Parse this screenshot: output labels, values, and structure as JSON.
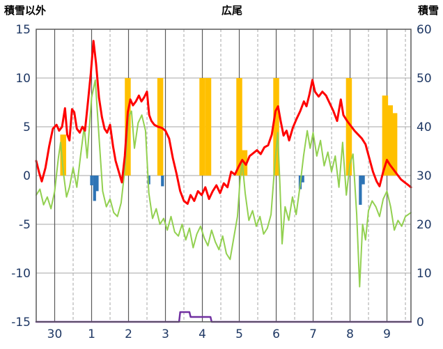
{
  "header": {
    "left_axis_label": "積雪以外",
    "title": "広尾",
    "right_axis_label": "積雪"
  },
  "palette": {
    "temperature": "#FF0000",
    "secondary": "#92D050",
    "sunshine": "#FFC000",
    "precipitation": "#2E74B5",
    "snow": "#7030A0",
    "grid": "#A6A6A6",
    "day_grid": "#595959",
    "axis_text": "#1F3864",
    "border": "#595959"
  },
  "chart_data": {
    "type": "mixed",
    "title": "広尾",
    "left_axis": {
      "label": "積雪以外",
      "min": -15,
      "max": 15,
      "tick_step": 5
    },
    "right_axis": {
      "label": "積雪",
      "min": 0,
      "max": 60,
      "tick_step": 10
    },
    "x_domain": [
      0,
      10.15
    ],
    "x_ticks": [
      {
        "t": 0.5,
        "label": "30"
      },
      {
        "t": 1.5,
        "label": "1"
      },
      {
        "t": 2.5,
        "label": "2"
      },
      {
        "t": 3.5,
        "label": "3"
      },
      {
        "t": 4.5,
        "label": "4"
      },
      {
        "t": 5.5,
        "label": "5"
      },
      {
        "t": 6.5,
        "label": "6"
      },
      {
        "t": 7.5,
        "label": "7"
      },
      {
        "t": 8.5,
        "label": "8"
      },
      {
        "t": 9.5,
        "label": "9"
      }
    ],
    "series": [
      {
        "name": "sunshine-bars",
        "type": "bar",
        "axis": "left",
        "color": "#FFC000",
        "bar_width": 0.16,
        "points": [
          [
            0.73,
            4.2
          ],
          [
            2.48,
            10
          ],
          [
            3.36,
            10
          ],
          [
            4.5,
            10
          ],
          [
            4.66,
            10
          ],
          [
            5.5,
            10
          ],
          [
            5.64,
            2.6
          ],
          [
            6.5,
            10
          ],
          [
            8.47,
            10
          ],
          [
            9.45,
            8.2
          ],
          [
            9.58,
            7.2
          ],
          [
            9.7,
            6.4
          ]
        ]
      },
      {
        "name": "precipitation-bars",
        "type": "bar",
        "axis": "left",
        "color": "#2E74B5",
        "bar_width": 0.08,
        "points": [
          [
            1.5,
            -1.0
          ],
          [
            1.58,
            -2.6
          ],
          [
            1.65,
            -1.6
          ],
          [
            3.05,
            -0.9
          ],
          [
            3.42,
            -1.1
          ],
          [
            7.15,
            -1.4
          ],
          [
            7.22,
            -0.7
          ],
          [
            8.78,
            -3.0
          ],
          [
            8.86,
            -0.9
          ]
        ]
      },
      {
        "name": "snow-depth-line",
        "type": "line",
        "axis": "right",
        "color": "#7030A0",
        "stroke_width": 2.5,
        "points": [
          [
            0,
            0
          ],
          [
            3.87,
            0
          ],
          [
            3.9,
            2
          ],
          [
            4.15,
            2
          ],
          [
            4.18,
            1
          ],
          [
            4.72,
            1
          ],
          [
            4.75,
            0
          ],
          [
            10.15,
            0
          ]
        ]
      },
      {
        "name": "secondary-line",
        "type": "line",
        "axis": "left",
        "color": "#92D050",
        "stroke_width": 2,
        "points": [
          [
            0,
            -2
          ],
          [
            0.1,
            -1.4
          ],
          [
            0.2,
            -3
          ],
          [
            0.3,
            -2.2
          ],
          [
            0.4,
            -3.4
          ],
          [
            0.5,
            -1.6
          ],
          [
            0.6,
            1.8
          ],
          [
            0.66,
            3.4
          ],
          [
            0.74,
            0.2
          ],
          [
            0.82,
            -2.2
          ],
          [
            0.9,
            -1.2
          ],
          [
            1,
            0.8
          ],
          [
            1.1,
            -1.2
          ],
          [
            1.2,
            2
          ],
          [
            1.3,
            5
          ],
          [
            1.38,
            1.8
          ],
          [
            1.5,
            8
          ],
          [
            1.6,
            9.8
          ],
          [
            1.7,
            4
          ],
          [
            1.8,
            -1.6
          ],
          [
            1.9,
            -3.2
          ],
          [
            2,
            -2.4
          ],
          [
            2.1,
            -3.8
          ],
          [
            2.2,
            -4.2
          ],
          [
            2.3,
            -2.8
          ],
          [
            2.4,
            0.6
          ],
          [
            2.5,
            6
          ],
          [
            2.58,
            6.6
          ],
          [
            2.66,
            2.8
          ],
          [
            2.76,
            5.4
          ],
          [
            2.86,
            6.2
          ],
          [
            2.96,
            4.6
          ],
          [
            3.05,
            -1.8
          ],
          [
            3.15,
            -4.4
          ],
          [
            3.25,
            -3.4
          ],
          [
            3.35,
            -5
          ],
          [
            3.45,
            -4.4
          ],
          [
            3.55,
            -5.6
          ],
          [
            3.65,
            -4.2
          ],
          [
            3.75,
            -5.8
          ],
          [
            3.85,
            -6.2
          ],
          [
            3.95,
            -5
          ],
          [
            4.05,
            -6.6
          ],
          [
            4.15,
            -5.4
          ],
          [
            4.25,
            -7.4
          ],
          [
            4.35,
            -6
          ],
          [
            4.45,
            -5.2
          ],
          [
            4.55,
            -6.4
          ],
          [
            4.65,
            -7.2
          ],
          [
            4.75,
            -5.6
          ],
          [
            4.85,
            -6.8
          ],
          [
            4.95,
            -7.6
          ],
          [
            5.05,
            -6.2
          ],
          [
            5.15,
            -8
          ],
          [
            5.25,
            -8.6
          ],
          [
            5.35,
            -6.4
          ],
          [
            5.45,
            -4.2
          ],
          [
            5.52,
            -0.5
          ],
          [
            5.58,
            1.4
          ],
          [
            5.66,
            -1.8
          ],
          [
            5.76,
            -4.6
          ],
          [
            5.86,
            -3.6
          ],
          [
            5.96,
            -5.2
          ],
          [
            6.06,
            -4.2
          ],
          [
            6.16,
            -6
          ],
          [
            6.26,
            -5.4
          ],
          [
            6.36,
            -4
          ],
          [
            6.46,
            1
          ],
          [
            6.54,
            4.4
          ],
          [
            6.6,
            -0.8
          ],
          [
            6.66,
            -7
          ],
          [
            6.74,
            -3.2
          ],
          [
            6.84,
            -4.6
          ],
          [
            6.94,
            -2.2
          ],
          [
            7.04,
            -4
          ],
          [
            7.14,
            -1.2
          ],
          [
            7.24,
            2
          ],
          [
            7.34,
            4.6
          ],
          [
            7.42,
            2.8
          ],
          [
            7.5,
            4.4
          ],
          [
            7.6,
            2
          ],
          [
            7.7,
            3.6
          ],
          [
            7.8,
            1
          ],
          [
            7.9,
            2.4
          ],
          [
            8,
            0.4
          ],
          [
            8.1,
            2
          ],
          [
            8.2,
            -1.2
          ],
          [
            8.3,
            3.4
          ],
          [
            8.4,
            -2
          ],
          [
            8.5,
            1.2
          ],
          [
            8.58,
            2.2
          ],
          [
            8.68,
            -4
          ],
          [
            8.76,
            -11.4
          ],
          [
            8.84,
            -5
          ],
          [
            8.92,
            -6.6
          ],
          [
            9,
            -3.6
          ],
          [
            9.1,
            -2.6
          ],
          [
            9.2,
            -3.2
          ],
          [
            9.3,
            -4.2
          ],
          [
            9.4,
            -2.4
          ],
          [
            9.5,
            -1.6
          ],
          [
            9.6,
            -3.2
          ],
          [
            9.7,
            -5.6
          ],
          [
            9.8,
            -4.6
          ],
          [
            9.9,
            -5.2
          ],
          [
            10,
            -4.2
          ],
          [
            10.15,
            -3.8
          ]
        ]
      },
      {
        "name": "temperature-line",
        "type": "line",
        "axis": "left",
        "color": "#FF0000",
        "stroke_width": 3,
        "points": [
          [
            0,
            1.5
          ],
          [
            0.08,
            0.3
          ],
          [
            0.15,
            -0.6
          ],
          [
            0.25,
            0.8
          ],
          [
            0.35,
            3
          ],
          [
            0.45,
            4.8
          ],
          [
            0.55,
            5.2
          ],
          [
            0.62,
            4.6
          ],
          [
            0.7,
            5
          ],
          [
            0.78,
            6.9
          ],
          [
            0.84,
            4.2
          ],
          [
            0.9,
            3.6
          ],
          [
            0.97,
            6.8
          ],
          [
            1.03,
            6.5
          ],
          [
            1.1,
            4.8
          ],
          [
            1.18,
            4.4
          ],
          [
            1.25,
            5
          ],
          [
            1.32,
            4.6
          ],
          [
            1.4,
            7.5
          ],
          [
            1.48,
            10.5
          ],
          [
            1.55,
            13.8
          ],
          [
            1.62,
            11.5
          ],
          [
            1.7,
            8
          ],
          [
            1.78,
            6
          ],
          [
            1.85,
            4.8
          ],
          [
            1.92,
            4.4
          ],
          [
            2,
            5.2
          ],
          [
            2.08,
            3
          ],
          [
            2.15,
            1.5
          ],
          [
            2.25,
            0.2
          ],
          [
            2.32,
            -0.7
          ],
          [
            2.4,
            2
          ],
          [
            2.48,
            6.5
          ],
          [
            2.55,
            7.8
          ],
          [
            2.62,
            7.2
          ],
          [
            2.7,
            7.6
          ],
          [
            2.78,
            8.2
          ],
          [
            2.85,
            7.6
          ],
          [
            2.92,
            8
          ],
          [
            3,
            8.6
          ],
          [
            3.06,
            6.2
          ],
          [
            3.12,
            5.6
          ],
          [
            3.2,
            5.2
          ],
          [
            3.3,
            5
          ],
          [
            3.4,
            4.9
          ],
          [
            3.5,
            4.6
          ],
          [
            3.6,
            3.8
          ],
          [
            3.7,
            1.8
          ],
          [
            3.8,
            0.2
          ],
          [
            3.9,
            -1.6
          ],
          [
            4,
            -2.6
          ],
          [
            4.1,
            -2.9
          ],
          [
            4.18,
            -2
          ],
          [
            4.28,
            -2.6
          ],
          [
            4.38,
            -1.6
          ],
          [
            4.48,
            -2
          ],
          [
            4.58,
            -1.2
          ],
          [
            4.68,
            -2.4
          ],
          [
            4.78,
            -1.6
          ],
          [
            4.88,
            -1
          ],
          [
            4.98,
            -1.8
          ],
          [
            5.08,
            -0.8
          ],
          [
            5.18,
            -1.2
          ],
          [
            5.28,
            0.4
          ],
          [
            5.38,
            0.1
          ],
          [
            5.48,
            0.9
          ],
          [
            5.58,
            1.6
          ],
          [
            5.68,
            1.1
          ],
          [
            5.78,
            2
          ],
          [
            5.88,
            2.3
          ],
          [
            5.98,
            2.6
          ],
          [
            6.08,
            2.2
          ],
          [
            6.18,
            2.9
          ],
          [
            6.28,
            3.1
          ],
          [
            6.38,
            4.2
          ],
          [
            6.48,
            6.6
          ],
          [
            6.55,
            7.1
          ],
          [
            6.62,
            5.6
          ],
          [
            6.7,
            4.1
          ],
          [
            6.78,
            4.6
          ],
          [
            6.85,
            3.6
          ],
          [
            6.95,
            4.9
          ],
          [
            7.05,
            5.8
          ],
          [
            7.15,
            6.6
          ],
          [
            7.25,
            7.6
          ],
          [
            7.32,
            7.1
          ],
          [
            7.4,
            8.3
          ],
          [
            7.48,
            9.8
          ],
          [
            7.55,
            8.6
          ],
          [
            7.65,
            8.1
          ],
          [
            7.75,
            8.6
          ],
          [
            7.85,
            8.2
          ],
          [
            7.95,
            7.4
          ],
          [
            8.05,
            6.6
          ],
          [
            8.15,
            5.6
          ],
          [
            8.25,
            7.8
          ],
          [
            8.32,
            6.2
          ],
          [
            8.42,
            5.6
          ],
          [
            8.52,
            5.1
          ],
          [
            8.62,
            4.6
          ],
          [
            8.72,
            4.2
          ],
          [
            8.82,
            3.8
          ],
          [
            8.92,
            3.2
          ],
          [
            9.02,
            1.8
          ],
          [
            9.12,
            0.4
          ],
          [
            9.22,
            -0.6
          ],
          [
            9.3,
            -1.1
          ],
          [
            9.4,
            0.4
          ],
          [
            9.5,
            1.6
          ],
          [
            9.58,
            1.1
          ],
          [
            9.68,
            0.6
          ],
          [
            9.78,
            0.1
          ],
          [
            9.88,
            -0.4
          ],
          [
            9.98,
            -0.7
          ],
          [
            10.05,
            -0.9
          ],
          [
            10.15,
            -1.2
          ]
        ]
      }
    ]
  }
}
